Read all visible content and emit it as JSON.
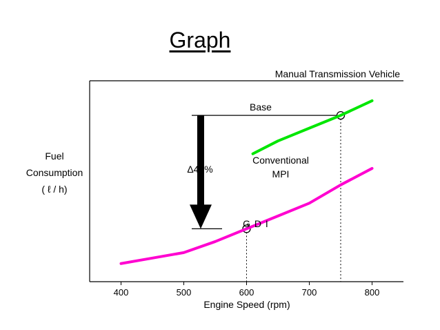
{
  "slide": {
    "title": "Graph"
  },
  "chart_data": {
    "type": "line",
    "subtitle": "Manual Transmission Vehicle",
    "xlabel": "Engine Speed (rpm)",
    "ylabel": [
      "Fuel",
      "Consumption",
      "( ℓ / h)"
    ],
    "xlim": [
      350,
      850
    ],
    "ylim": [
      0,
      100
    ],
    "x_ticks": [
      400,
      500,
      600,
      700,
      800
    ],
    "y_ticks": [],
    "grid": false,
    "legend": "none",
    "series": [
      {
        "name": "Conventional MPI",
        "label_lines": [
          "Conventional",
          "MPI"
        ],
        "color": "#00e600",
        "x": [
          610,
          650,
          700,
          750,
          800
        ],
        "y": [
          65,
          72,
          79,
          86,
          94
        ]
      },
      {
        "name": "G D I",
        "color": "#ff00d0",
        "x": [
          400,
          450,
          500,
          550,
          600,
          650,
          700,
          750,
          800
        ],
        "y": [
          5,
          8,
          11,
          17,
          24,
          31,
          38,
          48,
          57
        ]
      }
    ],
    "annotations": {
      "base_label": "Base",
      "reduction_label": "Δ40%",
      "base_point": {
        "x": 750,
        "y": 86
      },
      "gdi_point": {
        "x": 600,
        "y": 24
      }
    }
  }
}
